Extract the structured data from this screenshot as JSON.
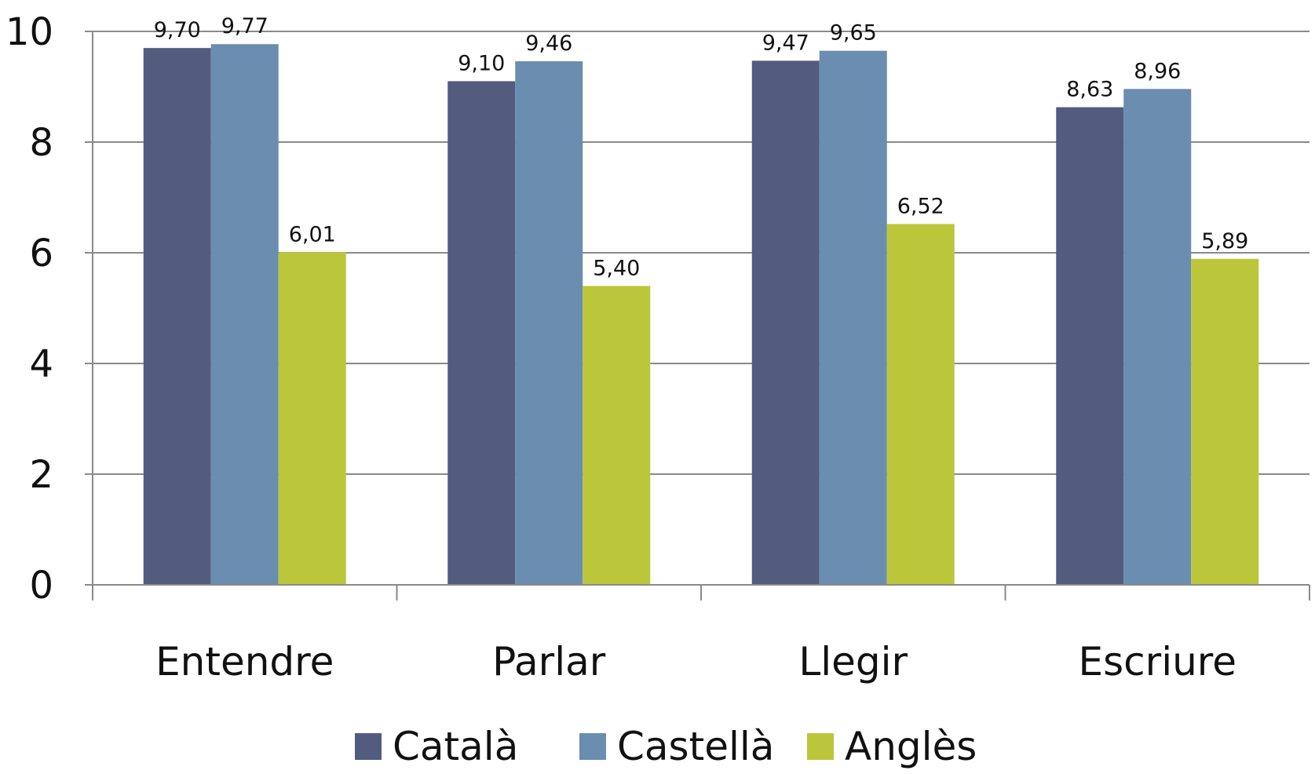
{
  "chart_data": {
    "type": "bar",
    "categories": [
      "Entendre",
      "Parlar",
      "Llegir",
      "Escriure"
    ],
    "series": [
      {
        "name": "Català",
        "color": "#535b7e",
        "values": [
          9.7,
          9.1,
          9.47,
          8.63
        ],
        "labels": [
          "9,70",
          "9,10",
          "9,47",
          "8,63"
        ]
      },
      {
        "name": "Castellà",
        "color": "#6a8db0",
        "values": [
          9.77,
          9.46,
          9.65,
          8.96
        ],
        "labels": [
          "9,77",
          "9,46",
          "9,65",
          "8,96"
        ]
      },
      {
        "name": "Anglès",
        "color": "#bcc63a",
        "values": [
          6.01,
          5.4,
          6.52,
          5.89
        ],
        "labels": [
          "6,01",
          "5,40",
          "6,52",
          "5,89"
        ]
      }
    ],
    "ylim": [
      0,
      10
    ],
    "yticks": [
      "0",
      "2",
      "4",
      "6",
      "8",
      "10"
    ],
    "grid": true,
    "legend_position": "bottom"
  }
}
